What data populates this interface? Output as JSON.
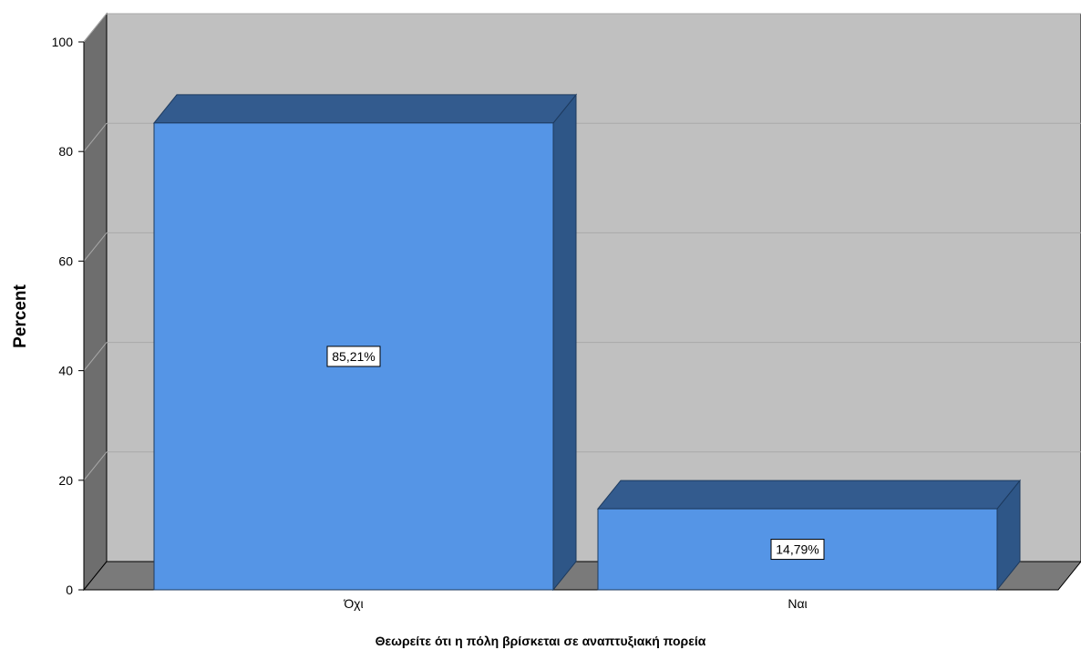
{
  "chart_data": {
    "type": "bar",
    "categories": [
      "Όχι",
      "Ναι"
    ],
    "values": [
      85.21,
      14.79
    ],
    "data_labels": [
      "85,21%",
      "14,79%"
    ],
    "xlabel": "Θεωρείτε ότι η πόλη βρίσκεται σε αναπτυξιακή πορεία",
    "ylabel": "Percent",
    "ylim": [
      0,
      100
    ],
    "yticks": [
      0,
      20,
      40,
      60,
      80,
      100
    ],
    "grid": true,
    "style": "3d",
    "colors": {
      "bar_front": "#5595e6",
      "bar_top": "#335b8e",
      "bar_side": "#2e5687",
      "plot_back": "#c0c0c0",
      "wall_left": "#6e6e6e",
      "floor": "#7a7a7a",
      "gridline": "#a9a9a9"
    }
  }
}
